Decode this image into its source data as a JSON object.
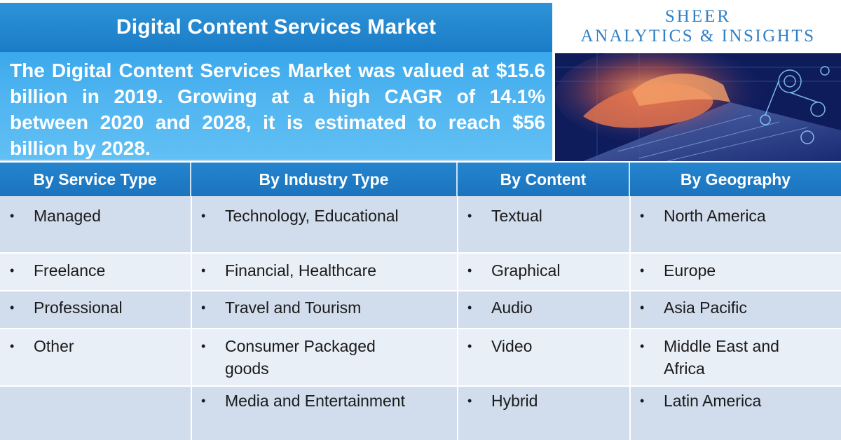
{
  "header": {
    "title": "Digital Content Services Market",
    "summary": "The Digital Content Services Market was valued at $15.6 billion in 2019. Growing at a high CAGR of 14.1% between 2020 and 2028, it is estimated to reach $56 billion by 2028."
  },
  "brand": {
    "line1": "SHEER",
    "line2": "ANALYTICS & INSIGHTS"
  },
  "table": {
    "columns": [
      {
        "heading": "By Service Type",
        "items": [
          "Managed",
          "Freelance",
          "Professional",
          "Other",
          ""
        ]
      },
      {
        "heading": "By Industry Type",
        "items": [
          "Technology, Educational",
          "Financial, Healthcare",
          "Travel and Tourism",
          "Consumer Packaged goods",
          "Media and Entertainment"
        ]
      },
      {
        "heading": "By Content",
        "items": [
          "Textual",
          "Graphical",
          "Audio",
          "Video",
          "Hybrid"
        ]
      },
      {
        "heading": "By Geography",
        "items": [
          "North America",
          "Europe",
          "Asia Pacific",
          "Middle East and Africa",
          "Latin America"
        ]
      }
    ],
    "bullet": "•",
    "colors": {
      "row_dark": "#d1dcec",
      "row_light": "#e9eff7",
      "header": "#1f7cc6"
    }
  }
}
